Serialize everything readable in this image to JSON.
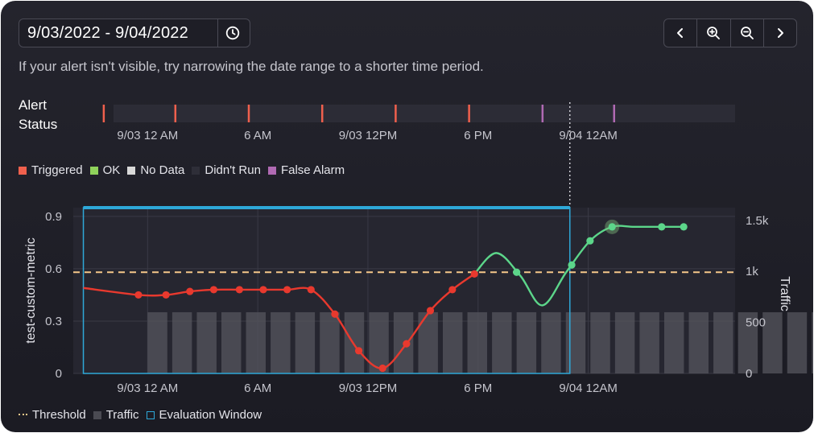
{
  "date_range": "9/03/2022 - 9/04/2022",
  "hint": "If your alert isn't visible, try narrowing the date range to a shorter time period.",
  "status_label_line1": "Alert",
  "status_label_line2": "Status",
  "nav_icons": [
    "chevron-left-icon",
    "zoom-in-icon",
    "zoom-out-icon",
    "chevron-right-icon"
  ],
  "status_legend": [
    {
      "label": "Triggered",
      "color": "#f0604d"
    },
    {
      "label": "OK",
      "color": "#8fd25b"
    },
    {
      "label": "No Data",
      "color": "#d9d9d9"
    },
    {
      "label": "Didn't Run",
      "color": "#2e2e38"
    },
    {
      "label": "False Alarm",
      "color": "#b06ab3"
    }
  ],
  "bottom_legend": [
    {
      "label": "Threshold",
      "kind": "dotted",
      "color": "#f5c88a"
    },
    {
      "label": "Traffic",
      "kind": "square",
      "color": "#4a4a52"
    },
    {
      "label": "Evaluation Window",
      "kind": "outline",
      "color": "#2ea8d8"
    }
  ],
  "chart_data": [
    {
      "type": "strip",
      "title": "Alert Status",
      "x_ticks": [
        "9/03 12 AM",
        "6 AM",
        "9/03 12PM",
        "6 PM",
        "9/04 12AM"
      ],
      "events": [
        {
          "hour": -2.4,
          "status": "Triggered"
        },
        {
          "hour": 1.5,
          "status": "Triggered"
        },
        {
          "hour": 5.5,
          "status": "Triggered"
        },
        {
          "hour": 9.5,
          "status": "Triggered"
        },
        {
          "hour": 13.5,
          "status": "Triggered"
        },
        {
          "hour": 17.5,
          "status": "Triggered"
        },
        {
          "hour": 21.5,
          "status": "False Alarm"
        },
        {
          "hour": 25.4,
          "status": "False Alarm"
        }
      ],
      "marker_hour": 23.0
    },
    {
      "type": "line",
      "y_label": "test-custom-metric",
      "y2_label": "Traffic",
      "y_ticks": [
        "0",
        "0.3",
        "0.6",
        "0.9"
      ],
      "y2_ticks": [
        "0",
        "500",
        "1k",
        "1.5k"
      ],
      "x_ticks": [
        "9/03 12 AM",
        "6 AM",
        "9/03 12PM",
        "6 PM",
        "9/04 12AM"
      ],
      "ylim": [
        0,
        0.95
      ],
      "y2lim": [
        0,
        1625
      ],
      "threshold": 0.58,
      "evaluation_window": {
        "start_hour": -3.5,
        "end_hour": 23.0
      },
      "marker_hour": 23.0,
      "series": [
        {
          "status": "Triggered",
          "color": "#e8392e",
          "points": [
            [
              -3.5,
              0.49
            ],
            [
              -0.5,
              0.45
            ],
            [
              1.0,
              0.45
            ],
            [
              2.3,
              0.47
            ],
            [
              3.6,
              0.48
            ],
            [
              5.0,
              0.48
            ],
            [
              6.3,
              0.48
            ],
            [
              7.6,
              0.48
            ],
            [
              8.9,
              0.48
            ],
            [
              10.2,
              0.34
            ],
            [
              11.5,
              0.13
            ],
            [
              12.8,
              0.03
            ],
            [
              14.1,
              0.17
            ],
            [
              15.4,
              0.36
            ],
            [
              16.6,
              0.48
            ],
            [
              17.8,
              0.57
            ]
          ]
        },
        {
          "status": "OK",
          "color": "#5cd68a",
          "points": [
            [
              17.8,
              0.57
            ],
            [
              19.0,
              0.69
            ],
            [
              20.3,
              0.56
            ],
            [
              21.5,
              0.39
            ],
            [
              22.8,
              0.58
            ],
            [
              24.1,
              0.76
            ],
            [
              25.3,
              0.84
            ],
            [
              26.5,
              0.84
            ],
            [
              28.0,
              0.84
            ],
            [
              29.2,
              0.84
            ]
          ]
        }
      ],
      "marker_dots": [
        {
          "status": "Triggered",
          "hours": [
            -0.5,
            1.0,
            2.3,
            3.6,
            5.0,
            6.3,
            7.6,
            8.9,
            10.2,
            11.5,
            12.8,
            14.1,
            15.4,
            16.6,
            17.8
          ]
        },
        {
          "status": "OK",
          "hours": [
            20.1,
            23.1,
            24.1,
            25.3,
            28.0,
            29.2
          ]
        }
      ],
      "highlight_hour": 25.3,
      "traffic": {
        "start_hour": 0.0,
        "step_hours": 1.34,
        "count": 28,
        "value": 600
      }
    }
  ]
}
